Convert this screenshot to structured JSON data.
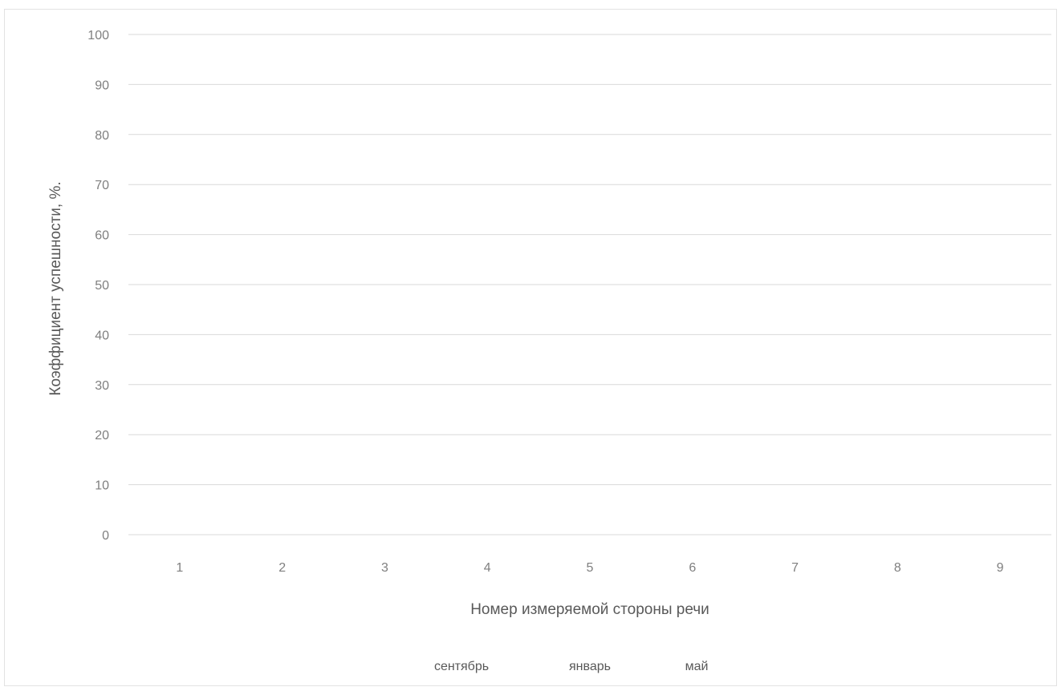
{
  "chart_data": {
    "type": "bar",
    "title": "",
    "xlabel": "Номер измеряемой стороны речи",
    "ylabel": "Коэффициент успешности, %.",
    "categories": [
      "1",
      "2",
      "3",
      "4",
      "5",
      "6",
      "7",
      "8",
      "9"
    ],
    "ylim": [
      0,
      100
    ],
    "yticks": [
      0,
      10,
      20,
      30,
      40,
      50,
      60,
      70,
      80,
      90,
      100
    ],
    "grid": true,
    "legend_position": "bottom",
    "series": [
      {
        "name": "сентябрь",
        "values": [
          0,
          0,
          0,
          0,
          0,
          0,
          0,
          0,
          0
        ]
      },
      {
        "name": "январь",
        "values": [
          0,
          0,
          0,
          0,
          0,
          0,
          0,
          0,
          0
        ]
      },
      {
        "name": "май",
        "values": [
          0,
          0,
          0,
          0,
          0,
          0,
          0,
          0,
          0
        ]
      }
    ]
  }
}
